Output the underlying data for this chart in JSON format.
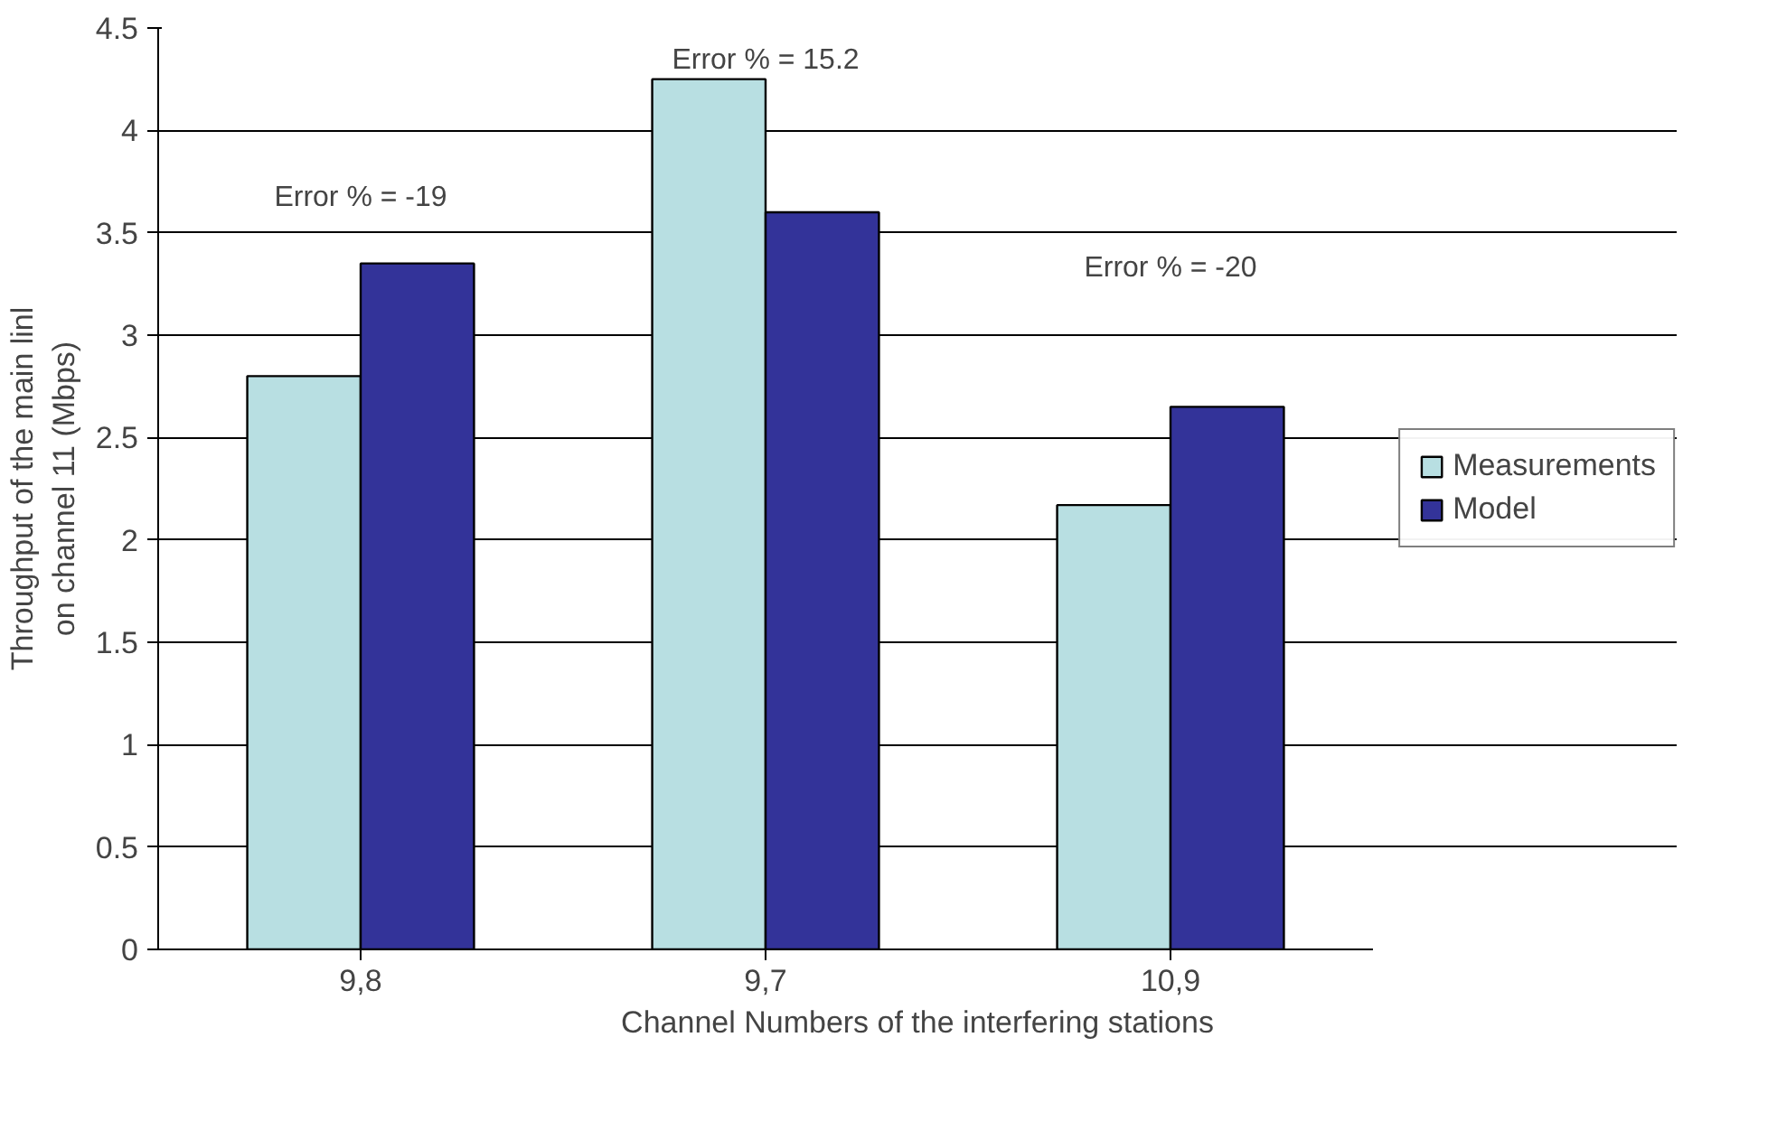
{
  "chart_data": {
    "type": "bar",
    "xlabel": "Channel Numbers of the interfering stations",
    "ylabel": "Throughput of the main linl\non channel 11 (Mbps)",
    "categories": [
      "9,8",
      "9,7",
      "10,9"
    ],
    "series": [
      {
        "name": "Measurements",
        "color": "#b8dfe2",
        "values": [
          2.8,
          4.25,
          2.17
        ]
      },
      {
        "name": "Model",
        "color": "#333399",
        "values": [
          3.35,
          3.6,
          2.65
        ]
      }
    ],
    "ylim": [
      0,
      4.5
    ],
    "yticks": [
      0,
      0.5,
      1,
      1.5,
      2,
      2.5,
      3,
      3.5,
      4,
      4.5
    ],
    "grid": "y",
    "legend": "right",
    "annotations": [
      "Error % = -19",
      "Error % = 15.2",
      "Error % = -20"
    ]
  }
}
